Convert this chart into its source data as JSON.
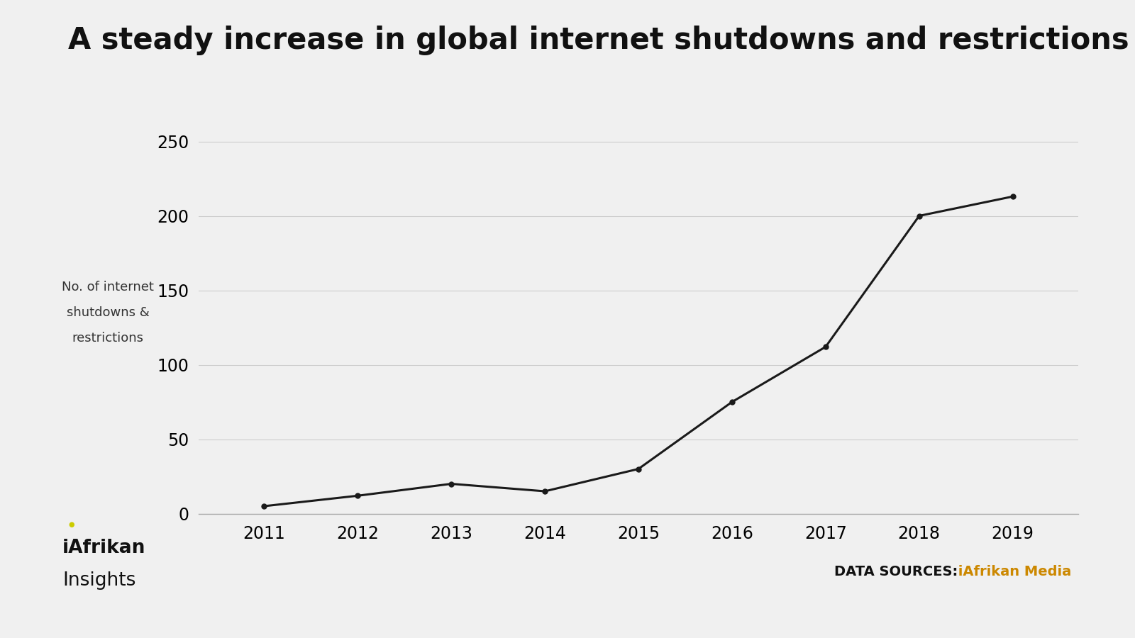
{
  "title": "A steady increase in global internet shutdowns and restrictions",
  "years": [
    2011,
    2012,
    2013,
    2014,
    2015,
    2016,
    2017,
    2018,
    2019
  ],
  "values": [
    5,
    12,
    20,
    15,
    30,
    75,
    112,
    200,
    213
  ],
  "ylabel_line1": "No. of internet",
  "ylabel_line2": "shutdowns &",
  "ylabel_line3": "restrictions",
  "ylim": [
    0,
    270
  ],
  "yticks": [
    0,
    50,
    100,
    150,
    200,
    250
  ],
  "line_color": "#1a1a1a",
  "marker_color": "#1a1a1a",
  "background_color": "#f0f0f0",
  "plot_bg_color": "#f0f0f0",
  "grid_color": "#cccccc",
  "title_fontsize": 30,
  "axis_fontsize": 17,
  "ylabel_fontsize": 13,
  "brand_name": "iAfrikan",
  "brand_sub": "Insights",
  "brand_dot_color": "#cccc00",
  "datasource_label": "DATA SOURCES:",
  "datasource_value": " iAfrikan Media",
  "datasource_color": "#cc8800"
}
